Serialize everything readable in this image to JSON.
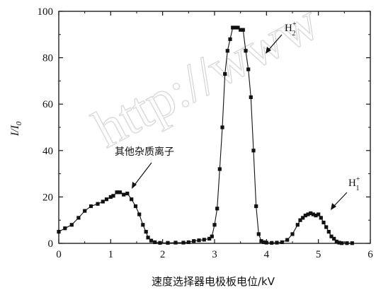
{
  "watermark": "http://www",
  "chart_data": {
    "type": "scatter",
    "xlabel": "速度选择器电极板电位/kV",
    "ylabel_main": "I/I",
    "ylabel_sub": "0",
    "xlim": [
      0,
      6
    ],
    "ylim": [
      0,
      100
    ],
    "x_ticks": [
      "0",
      "1",
      "2",
      "3",
      "4",
      "5",
      "6"
    ],
    "y_ticks": [
      "0",
      "20",
      "40",
      "60",
      "80",
      "100"
    ],
    "annotations": {
      "impurity": "其他杂质离子",
      "h2_main": "H",
      "h2_sub": "2",
      "h2_sup": "+",
      "h1_main": "H",
      "h1_sub": "1",
      "h1_sup": "+"
    },
    "series": [
      {
        "x": [
          0.0,
          0.12,
          0.25,
          0.38,
          0.5,
          0.62,
          0.75,
          0.85,
          0.92,
          1.0,
          1.05,
          1.12,
          1.18,
          1.25,
          1.32,
          1.4,
          1.48,
          1.55,
          1.62,
          1.68,
          1.72,
          1.78,
          1.85,
          1.95,
          2.1,
          2.25,
          2.4,
          2.5,
          2.6,
          2.7,
          2.8,
          2.9,
          2.95,
          3.0,
          3.05,
          3.1,
          3.15,
          3.2,
          3.25,
          3.3,
          3.35,
          3.4,
          3.45,
          3.5,
          3.55,
          3.6,
          3.65,
          3.7,
          3.75,
          3.8,
          3.85,
          3.9,
          3.95,
          4.0,
          4.1,
          4.2,
          4.3,
          4.4,
          4.5,
          4.6,
          4.65,
          4.7,
          4.75,
          4.8,
          4.85,
          4.9,
          4.95,
          5.0,
          5.05,
          5.1,
          5.15,
          5.2,
          5.25,
          5.3,
          5.35,
          5.4,
          5.45,
          5.55,
          5.65
        ],
        "y": [
          5,
          6.5,
          8,
          11,
          14,
          16,
          17,
          18,
          19,
          20,
          20.5,
          22,
          22,
          21,
          21.5,
          19,
          16,
          12.5,
          8,
          5,
          2.5,
          1.2,
          0.5,
          0.2,
          0.2,
          0.3,
          0.3,
          0.5,
          1,
          1.3,
          1.6,
          2,
          3,
          8,
          15,
          32,
          50,
          73,
          83,
          88,
          93,
          93,
          93,
          92,
          92,
          83,
          75,
          63,
          40,
          16,
          4,
          1,
          0.5,
          0.3,
          0.2,
          0.3,
          0.5,
          1.5,
          4,
          8,
          10,
          11,
          12,
          12.5,
          13,
          12.5,
          12,
          12.5,
          11,
          9,
          7,
          5,
          3,
          2,
          0.8,
          0.3,
          0.1,
          0.1,
          0.1
        ]
      }
    ]
  }
}
